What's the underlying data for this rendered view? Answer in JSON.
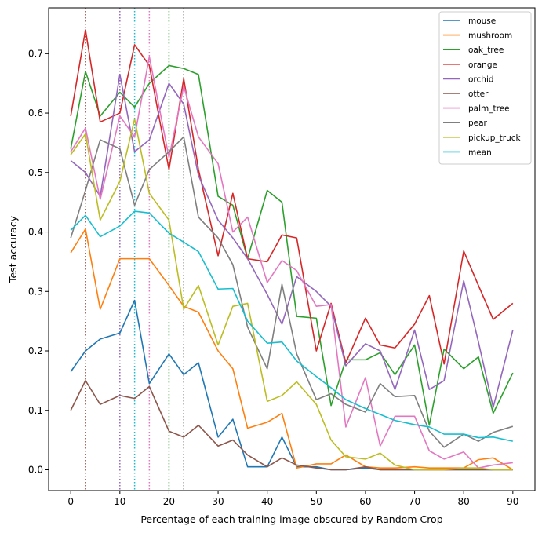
{
  "chart_data": {
    "type": "line",
    "title": "",
    "xlabel": "Percentage of each training image obscured by Random Crop",
    "ylabel": "Test accuracy",
    "xlim": [
      -4.5,
      94.5
    ],
    "ylim": [
      -0.035,
      0.777
    ],
    "xticks": [
      0,
      10,
      20,
      30,
      40,
      50,
      60,
      70,
      80,
      90
    ],
    "yticks": [
      0.0,
      0.1,
      0.2,
      0.3,
      0.4,
      0.5,
      0.6,
      0.7
    ],
    "ytick_labels": [
      "0.0",
      "0.1",
      "0.2",
      "0.3",
      "0.4",
      "0.5",
      "0.6",
      "0.7"
    ],
    "legend_position": "top-right",
    "x": [
      0,
      3,
      6,
      10,
      13,
      16,
      20,
      23,
      26,
      30,
      33,
      36,
      40,
      43,
      46,
      50,
      53,
      56,
      60,
      63,
      66,
      70,
      73,
      76,
      80,
      83,
      86,
      90
    ],
    "series": [
      {
        "name": "mouse",
        "color": "#1f77b4",
        "values": [
          0.165,
          0.2,
          0.22,
          0.23,
          0.285,
          0.145,
          0.195,
          0.16,
          0.18,
          0.055,
          0.085,
          0.005,
          0.005,
          0.055,
          0.005,
          0.005,
          0.0,
          0.0,
          0.003,
          0.0,
          0.0,
          0.0,
          0.0,
          0.0,
          0.0,
          0.0,
          0.0,
          0.0
        ]
      },
      {
        "name": "mushroom",
        "color": "#ff7f0e",
        "values": [
          0.365,
          0.405,
          0.27,
          0.355,
          0.355,
          0.355,
          0.31,
          0.275,
          0.265,
          0.2,
          0.17,
          0.07,
          0.08,
          0.095,
          0.003,
          0.01,
          0.01,
          0.025,
          0.005,
          0.003,
          0.003,
          0.005,
          0.003,
          0.003,
          0.003,
          0.017,
          0.02,
          0.0
        ]
      },
      {
        "name": "oak_tree",
        "color": "#2ca02c",
        "values": [
          0.54,
          0.67,
          0.595,
          0.635,
          0.61,
          0.65,
          0.68,
          0.675,
          0.665,
          0.46,
          0.445,
          0.355,
          0.47,
          0.45,
          0.258,
          0.255,
          0.108,
          0.185,
          0.185,
          0.197,
          0.16,
          0.21,
          0.075,
          0.203,
          0.17,
          0.19,
          0.095,
          0.163
        ]
      },
      {
        "name": "orange",
        "color": "#d62728",
        "values": [
          0.595,
          0.74,
          0.585,
          0.6,
          0.715,
          0.68,
          0.505,
          0.658,
          0.505,
          0.36,
          0.465,
          0.355,
          0.35,
          0.395,
          0.39,
          0.2,
          0.28,
          0.18,
          0.255,
          0.21,
          0.205,
          0.245,
          0.293,
          0.178,
          0.368,
          0.31,
          0.253,
          0.28
        ]
      },
      {
        "name": "orchid",
        "color": "#9467bd",
        "values": [
          0.52,
          0.5,
          0.46,
          0.665,
          0.535,
          0.555,
          0.65,
          0.615,
          0.495,
          0.42,
          0.39,
          0.355,
          0.295,
          0.245,
          0.325,
          0.3,
          0.275,
          0.175,
          0.212,
          0.2,
          0.135,
          0.235,
          0.135,
          0.15,
          0.318,
          0.215,
          0.105,
          0.235
        ]
      },
      {
        "name": "otter",
        "color": "#8c564b",
        "values": [
          0.1,
          0.15,
          0.11,
          0.125,
          0.12,
          0.14,
          0.065,
          0.055,
          0.075,
          0.04,
          0.05,
          0.025,
          0.005,
          0.02,
          0.008,
          0.003,
          0.0,
          0.0,
          0.005,
          0.0,
          0.0,
          0.0,
          0.0,
          0.0,
          0.0,
          0.0,
          0.0,
          0.0
        ]
      },
      {
        "name": "palm_tree",
        "color": "#e377c2",
        "values": [
          0.535,
          0.575,
          0.455,
          0.595,
          0.56,
          0.695,
          0.525,
          0.645,
          0.56,
          0.515,
          0.4,
          0.425,
          0.315,
          0.352,
          0.335,
          0.275,
          0.278,
          0.072,
          0.155,
          0.04,
          0.09,
          0.09,
          0.032,
          0.018,
          0.03,
          0.003,
          0.008,
          0.012
        ]
      },
      {
        "name": "pear",
        "color": "#7f7f7f",
        "values": [
          0.39,
          0.47,
          0.555,
          0.54,
          0.445,
          0.505,
          0.535,
          0.56,
          0.425,
          0.39,
          0.345,
          0.24,
          0.17,
          0.312,
          0.195,
          0.118,
          0.128,
          0.11,
          0.097,
          0.145,
          0.123,
          0.125,
          0.065,
          0.038,
          0.06,
          0.048,
          0.063,
          0.073
        ]
      },
      {
        "name": "pickup_truck",
        "color": "#bcbd22",
        "values": [
          0.53,
          0.565,
          0.42,
          0.485,
          0.59,
          0.465,
          0.42,
          0.27,
          0.31,
          0.21,
          0.275,
          0.28,
          0.115,
          0.125,
          0.148,
          0.11,
          0.05,
          0.022,
          0.018,
          0.028,
          0.008,
          0.0,
          0.0,
          0.0,
          0.003,
          0.003,
          0.0,
          0.0
        ]
      },
      {
        "name": "mean",
        "color": "#17becf",
        "values": [
          0.403,
          0.428,
          0.392,
          0.41,
          0.435,
          0.432,
          0.398,
          0.383,
          0.367,
          0.304,
          0.305,
          0.25,
          0.213,
          0.215,
          0.183,
          0.157,
          0.138,
          0.118,
          0.103,
          0.093,
          0.083,
          0.076,
          0.072,
          0.06,
          0.06,
          0.054,
          0.055,
          0.048
        ]
      }
    ],
    "vlines": [
      {
        "x": 3,
        "color": "#d62728"
      },
      {
        "x": 3,
        "color": "#8c564b"
      },
      {
        "x": 10,
        "color": "#9467bd"
      },
      {
        "x": 13,
        "color": "#17becf"
      },
      {
        "x": 16,
        "color": "#e377c2"
      },
      {
        "x": 20,
        "color": "#2ca02c"
      },
      {
        "x": 23,
        "color": "#7f7f7f"
      }
    ]
  }
}
